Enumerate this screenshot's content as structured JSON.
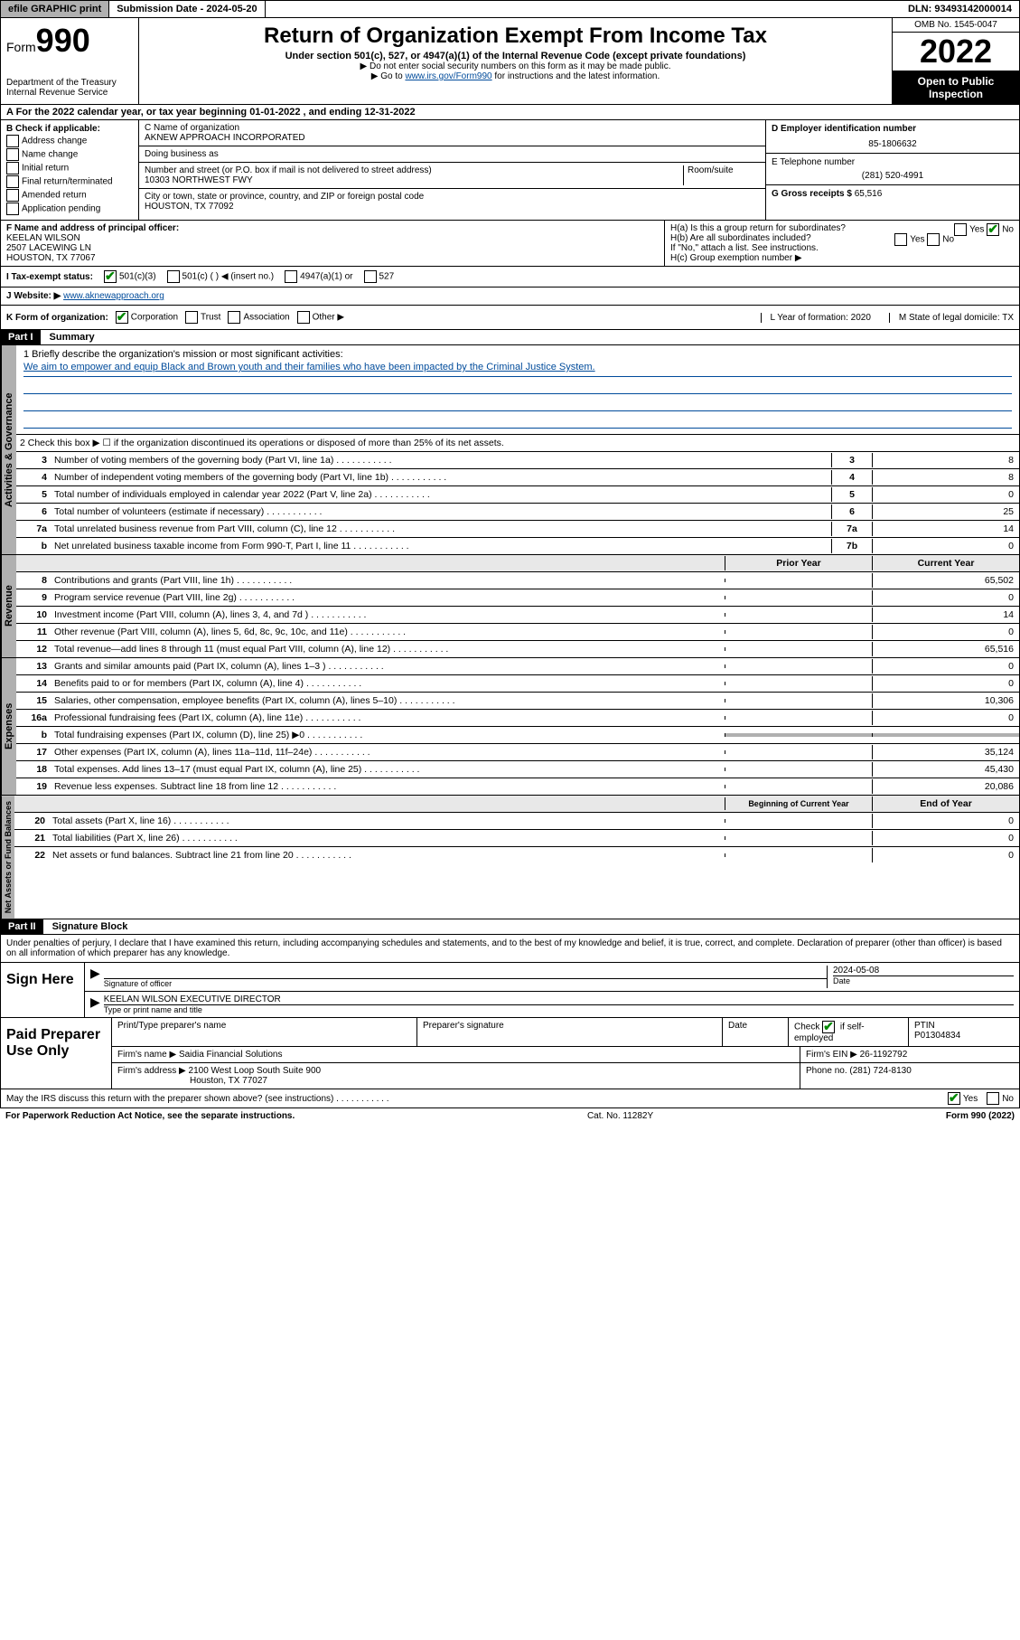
{
  "topbar": {
    "efile": "efile GRAPHIC print",
    "submission": "Submission Date - 2024-05-20",
    "dln": "DLN: 93493142000014"
  },
  "header": {
    "form_label": "Form",
    "form_num": "990",
    "dept": "Department of the Treasury\nInternal Revenue Service",
    "title": "Return of Organization Exempt From Income Tax",
    "sub": "Under section 501(c), 527, or 4947(a)(1) of the Internal Revenue Code (except private foundations)",
    "note1": "▶ Do not enter social security numbers on this form as it may be made public.",
    "note2_pre": "▶ Go to ",
    "note2_link": "www.irs.gov/Form990",
    "note2_post": " for instructions and the latest information.",
    "omb": "OMB No. 1545-0047",
    "year": "2022",
    "open": "Open to Public Inspection"
  },
  "sectionA": "A For the 2022 calendar year, or tax year beginning 01-01-2022   , and ending 12-31-2022",
  "colB": {
    "label": "B Check if applicable:",
    "opts": [
      "Address change",
      "Name change",
      "Initial return",
      "Final return/terminated",
      "Amended return",
      "Application pending"
    ]
  },
  "colC": {
    "name_label": "C Name of organization",
    "name": "AKNEW APPROACH INCORPORATED",
    "dba_label": "Doing business as",
    "dba": "",
    "street_label": "Number and street (or P.O. box if mail is not delivered to street address)",
    "room_label": "Room/suite",
    "street": "10303 NORTHWEST FWY",
    "city_label": "City or town, state or province, country, and ZIP or foreign postal code",
    "city": "HOUSTON, TX  77092"
  },
  "colD": {
    "label": "D Employer identification number",
    "value": "85-1806632"
  },
  "colE": {
    "label": "E Telephone number",
    "value": "(281) 520-4991"
  },
  "colG": {
    "label": "G Gross receipts $",
    "value": "65,516"
  },
  "rowF": {
    "label": "F Name and address of principal officer:",
    "name": "KEELAN WILSON",
    "addr1": "2507 LACEWING LN",
    "addr2": "HOUSTON, TX  77067"
  },
  "rowH": {
    "ha": "H(a)  Is this a group return for subordinates?",
    "ha_yes": "Yes",
    "ha_no": "No",
    "hb": "H(b)  Are all subordinates included?",
    "hb_yes": "Yes",
    "hb_no": "No",
    "hb_note": "If \"No,\" attach a list. See instructions.",
    "hc": "H(c)  Group exemption number ▶"
  },
  "rowI": {
    "label": "I   Tax-exempt status:",
    "o1": "501(c)(3)",
    "o2": "501(c) (  ) ◀ (insert no.)",
    "o3": "4947(a)(1) or",
    "o4": "527"
  },
  "rowJ": {
    "label": "J   Website: ▶",
    "value": "www.aknewapproach.org"
  },
  "rowK": {
    "label": "K Form of organization:",
    "o1": "Corporation",
    "o2": "Trust",
    "o3": "Association",
    "o4": "Other ▶",
    "L": "L Year of formation: 2020",
    "M": "M State of legal domicile: TX"
  },
  "part1": {
    "header": "Part I",
    "title": "Summary"
  },
  "summary": {
    "l1_label": "1   Briefly describe the organization's mission or most significant activities:",
    "l1_text": "We aim to empower and equip Black and Brown youth and their families who have been impacted by the Criminal Justice System.",
    "l2": "2   Check this box ▶ ☐  if the organization discontinued its operations or disposed of more than 25% of its net assets.",
    "rows": [
      {
        "n": "3",
        "t": "Number of voting members of the governing body (Part VI, line 1a)",
        "box": "3",
        "v": "8"
      },
      {
        "n": "4",
        "t": "Number of independent voting members of the governing body (Part VI, line 1b)",
        "box": "4",
        "v": "8"
      },
      {
        "n": "5",
        "t": "Total number of individuals employed in calendar year 2022 (Part V, line 2a)",
        "box": "5",
        "v": "0"
      },
      {
        "n": "6",
        "t": "Total number of volunteers (estimate if necessary)",
        "box": "6",
        "v": "25"
      },
      {
        "n": "7a",
        "t": "Total unrelated business revenue from Part VIII, column (C), line 12",
        "box": "7a",
        "v": "14"
      },
      {
        "n": "b",
        "t": "Net unrelated business taxable income from Form 990-T, Part I, line 11",
        "box": "7b",
        "v": "0"
      }
    ],
    "py_header": "Prior Year",
    "cy_header": "Current Year",
    "rev_rows": [
      {
        "n": "8",
        "t": "Contributions and grants (Part VIII, line 1h)",
        "py": "",
        "cy": "65,502"
      },
      {
        "n": "9",
        "t": "Program service revenue (Part VIII, line 2g)",
        "py": "",
        "cy": "0"
      },
      {
        "n": "10",
        "t": "Investment income (Part VIII, column (A), lines 3, 4, and 7d )",
        "py": "",
        "cy": "14"
      },
      {
        "n": "11",
        "t": "Other revenue (Part VIII, column (A), lines 5, 6d, 8c, 9c, 10c, and 11e)",
        "py": "",
        "cy": "0"
      },
      {
        "n": "12",
        "t": "Total revenue—add lines 8 through 11 (must equal Part VIII, column (A), line 12)",
        "py": "",
        "cy": "65,516"
      }
    ],
    "exp_rows": [
      {
        "n": "13",
        "t": "Grants and similar amounts paid (Part IX, column (A), lines 1–3 )",
        "py": "",
        "cy": "0"
      },
      {
        "n": "14",
        "t": "Benefits paid to or for members (Part IX, column (A), line 4)",
        "py": "",
        "cy": "0"
      },
      {
        "n": "15",
        "t": "Salaries, other compensation, employee benefits (Part IX, column (A), lines 5–10)",
        "py": "",
        "cy": "10,306"
      },
      {
        "n": "16a",
        "t": "Professional fundraising fees (Part IX, column (A), line 11e)",
        "py": "",
        "cy": "0"
      },
      {
        "n": "b",
        "t": "Total fundraising expenses (Part IX, column (D), line 25) ▶0",
        "py": "shade",
        "cy": "shade"
      },
      {
        "n": "17",
        "t": "Other expenses (Part IX, column (A), lines 11a–11d, 11f–24e)",
        "py": "",
        "cy": "35,124"
      },
      {
        "n": "18",
        "t": "Total expenses. Add lines 13–17 (must equal Part IX, column (A), line 25)",
        "py": "",
        "cy": "45,430"
      },
      {
        "n": "19",
        "t": "Revenue less expenses. Subtract line 18 from line 12",
        "py": "",
        "cy": "20,086"
      }
    ],
    "na_header1": "Beginning of Current Year",
    "na_header2": "End of Year",
    "na_rows": [
      {
        "n": "20",
        "t": "Total assets (Part X, line 16)",
        "py": "",
        "cy": "0"
      },
      {
        "n": "21",
        "t": "Total liabilities (Part X, line 26)",
        "py": "",
        "cy": "0"
      },
      {
        "n": "22",
        "t": "Net assets or fund balances. Subtract line 21 from line 20",
        "py": "",
        "cy": "0"
      }
    ]
  },
  "vtabs": {
    "gov": "Activities & Governance",
    "rev": "Revenue",
    "exp": "Expenses",
    "na": "Net Assets or Fund Balances"
  },
  "part2": {
    "header": "Part II",
    "title": "Signature Block"
  },
  "sig": {
    "decl": "Under penalties of perjury, I declare that I have examined this return, including accompanying schedules and statements, and to the best of my knowledge and belief, it is true, correct, and complete. Declaration of preparer (other than officer) is based on all information of which preparer has any knowledge.",
    "sign_here": "Sign Here",
    "officer_sig": "Signature of officer",
    "date": "2024-05-08",
    "date_label": "Date",
    "officer_name": "KEELAN WILSON  EXECUTIVE DIRECTOR",
    "name_label": "Type or print name and title"
  },
  "prep": {
    "label": "Paid Preparer Use Only",
    "h1": "Print/Type preparer's name",
    "h2": "Preparer's signature",
    "h3": "Date",
    "h4_pre": "Check",
    "h4_post": "if self-employed",
    "h5": "PTIN",
    "ptin": "P01304834",
    "firm_label": "Firm's name   ▶",
    "firm": "Saidia Financial Solutions",
    "ein_label": "Firm's EIN ▶",
    "ein": "26-1192792",
    "addr_label": "Firm's address ▶",
    "addr": "2100 West Loop South Suite 900",
    "addr2": "Houston, TX  77027",
    "phone_label": "Phone no.",
    "phone": "(281) 724-8130"
  },
  "footer": {
    "discuss": "May the IRS discuss this return with the preparer shown above? (see instructions)",
    "yes": "Yes",
    "no": "No",
    "pra": "For Paperwork Reduction Act Notice, see the separate instructions.",
    "cat": "Cat. No. 11282Y",
    "form": "Form 990 (2022)"
  },
  "colors": {
    "link": "#004b9b",
    "shade": "#b0b0b0",
    "check": "#008800"
  }
}
